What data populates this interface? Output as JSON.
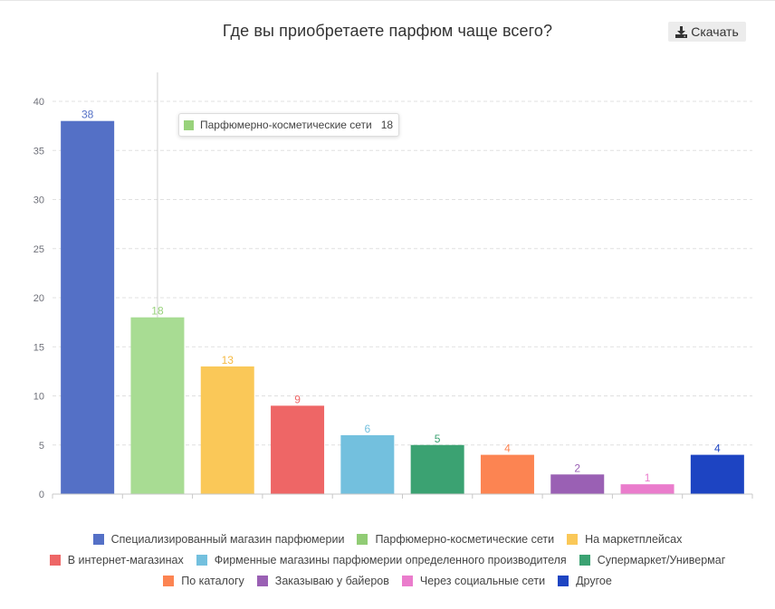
{
  "header": {
    "title": "Где вы приобретаете парфюм чаще всего?",
    "download_label": "Скачать",
    "download_icon": "download-icon"
  },
  "tooltip": {
    "label": "Парфюмерно-косметические сети",
    "value": "18",
    "color": "#98d27b"
  },
  "chart_data": {
    "type": "bar",
    "title": "Где вы приобретаете парфюм чаще всего?",
    "xlabel": "",
    "ylabel": "",
    "ylim": [
      0,
      40
    ],
    "yticks": [
      0,
      5,
      10,
      15,
      20,
      25,
      30,
      35,
      40
    ],
    "grid": true,
    "legend_position": "bottom",
    "categories": [
      "Специализированный магазин парфюмерии",
      "Парфюмерно-косметические сети",
      "На маркетплейсах",
      "В интернет-магазинах",
      "Фирменные магазины парфюмерии определенного производителя",
      "Супермаркет/Универмаг",
      "По каталогу",
      "Заказываю у байеров",
      "Через социальные сети",
      "Другое"
    ],
    "values": [
      38,
      18,
      13,
      9,
      6,
      5,
      4,
      2,
      1,
      4
    ],
    "bar_colors": [
      "#5470c6",
      "#a8dc93",
      "#fac858",
      "#ee6666",
      "#73c0de",
      "#3ba272",
      "#fc8452",
      "#9a60b4",
      "#ea7ccc",
      "#1d44c2"
    ],
    "label_colors": [
      "#5470c6",
      "#98d27b",
      "#f5b942",
      "#ee6666",
      "#73c0de",
      "#3ba272",
      "#fc8452",
      "#9a60b4",
      "#ea7ccc",
      "#1d44c2"
    ],
    "legend_colors": [
      "#5470c6",
      "#91cc75",
      "#fac858",
      "#ee6666",
      "#73c0de",
      "#3ba272",
      "#fc8452",
      "#9a60b4",
      "#ea7ccc",
      "#1d44c2"
    ],
    "highlighted_category": "Парфюмерно-косметические сети"
  }
}
